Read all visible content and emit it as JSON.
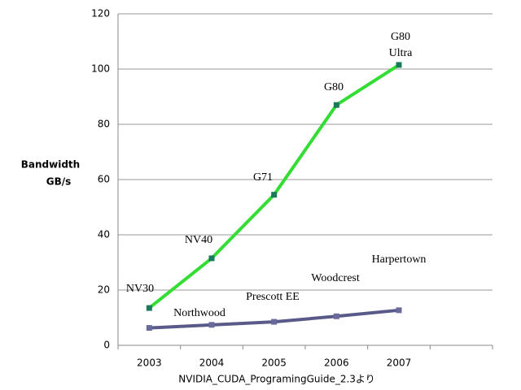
{
  "chart_data": {
    "type": "line",
    "y_label": [
      "Bandwidth",
      "GB/s"
    ],
    "categories": [
      "2003",
      "2004",
      "2005",
      "2006",
      "2007"
    ],
    "series": [
      {
        "color": "#33dd33",
        "marker_color": "#1a7a5a",
        "values": [
          13.5,
          31.5,
          54.5,
          87,
          101.5
        ]
      },
      {
        "color": "#5a5a8a",
        "marker_color": "#6a6a9a",
        "values": [
          6.3,
          7.4,
          8.5,
          10.5,
          12.7
        ]
      }
    ],
    "ylim": [
      0,
      120
    ],
    "yticks": [
      0,
      20,
      40,
      60,
      80,
      100,
      120
    ],
    "grid": true,
    "annotations": [
      [
        "NV30"
      ],
      [
        "NV40"
      ],
      [
        "G71"
      ],
      [
        "G80"
      ],
      [
        "G80",
        "Ultra"
      ],
      [
        "Northwood"
      ],
      [
        "Prescott EE"
      ],
      [
        "Woodcrest"
      ],
      [
        "Harpertown"
      ]
    ],
    "source": "NVIDIA_CUDA_ProgramingGuide_2.3より"
  }
}
